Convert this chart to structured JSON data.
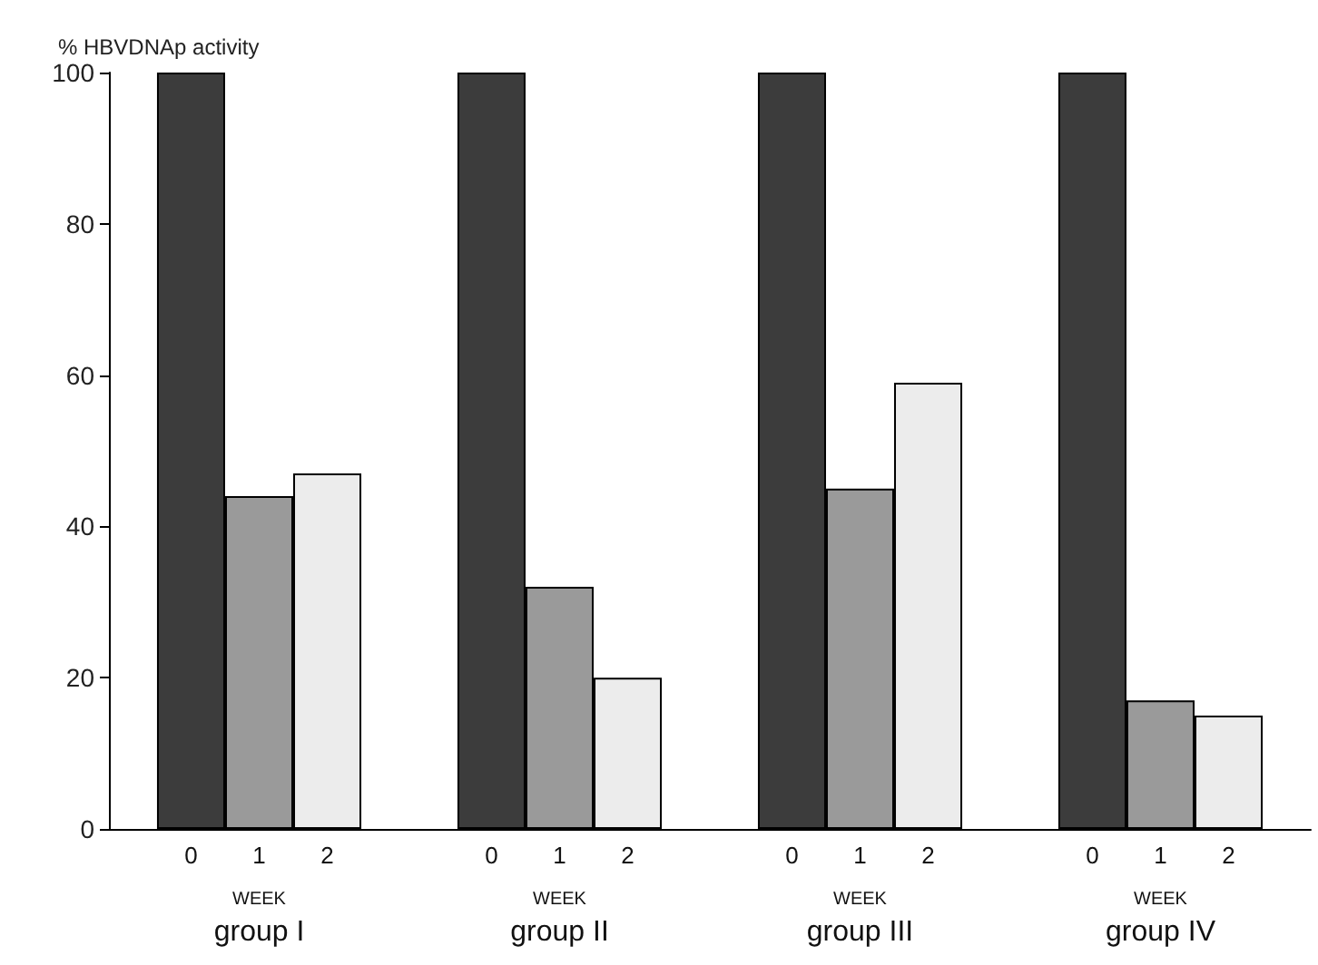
{
  "chart_data": {
    "type": "bar",
    "ylabel": "% HBVDNAp activity",
    "categories": [
      "group I",
      "group II",
      "group III",
      "group IV"
    ],
    "series": [
      {
        "name": "0",
        "color": "#3c3c3c",
        "values": [
          100,
          100,
          100,
          100
        ]
      },
      {
        "name": "1",
        "color": "#9a9a9a",
        "values": [
          44,
          32,
          45,
          17
        ]
      },
      {
        "name": "2",
        "color": "#ececec",
        "values": [
          47,
          20,
          59,
          15
        ]
      }
    ],
    "annotations": [
      "WEEK",
      "WEEK",
      "WEEK",
      "WEEK"
    ],
    "ylim": [
      0,
      100
    ],
    "yticks": [
      0,
      20,
      40,
      60,
      80,
      100
    ],
    "grid": false,
    "legend": false
  }
}
